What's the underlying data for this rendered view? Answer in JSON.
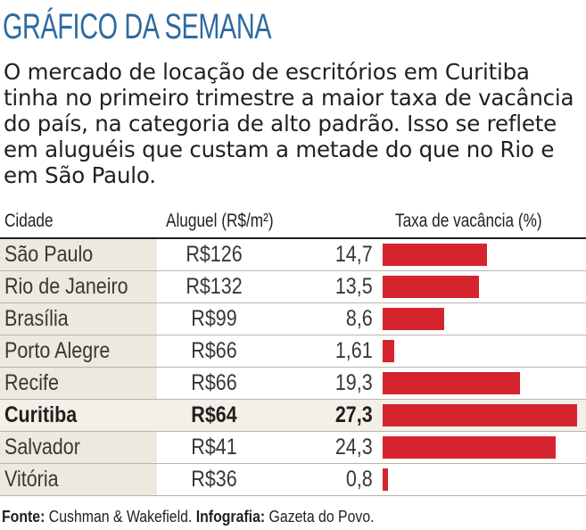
{
  "headline": "GRÁFICO DA SEMANA",
  "intro": "O mercado de locação de escritórios em Curitiba tinha no primeiro trimestre a maior taxa de vacância do país, na categoria de alto padrão. Isso se reflete em aluguéis que custam a metade do que no Rio e em São Paulo.",
  "columns": {
    "city": "Cidade",
    "rent": "Aluguel (R$/m²)",
    "rate": "Taxa de vacância (%)"
  },
  "colors": {
    "headline": "#2d6a9f",
    "bar": "#d6242f",
    "first_column_bg": "#ece9df",
    "highlight_row_bg": "#f3f0e8"
  },
  "chart_data": {
    "type": "bar",
    "orientation": "horizontal",
    "categories": [
      "São Paulo",
      "Rio de Janeiro",
      "Brasília",
      "Porto Alegre",
      "Recife",
      "Curitiba",
      "Salvador",
      "Vitória"
    ],
    "rent_labels": [
      "R$126",
      "R$132",
      "R$99",
      "R$66",
      "R$66",
      "R$64",
      "R$41",
      "R$36"
    ],
    "rate_labels": [
      "14,7",
      "13,5",
      "8,6",
      "1,61",
      "19,3",
      "27,3",
      "24,3",
      "0,8"
    ],
    "series": [
      {
        "values": [
          14.7,
          13.5,
          8.6,
          1.61,
          19.3,
          27.3,
          24.3,
          0.8
        ]
      }
    ],
    "highlight": "Curitiba",
    "xlim": [
      0,
      27.3
    ]
  },
  "source": {
    "label1": "Fonte:",
    "text1": " Cushman & Wakefield. ",
    "label2": "Infografia:",
    "text2": " Gazeta do Povo."
  }
}
